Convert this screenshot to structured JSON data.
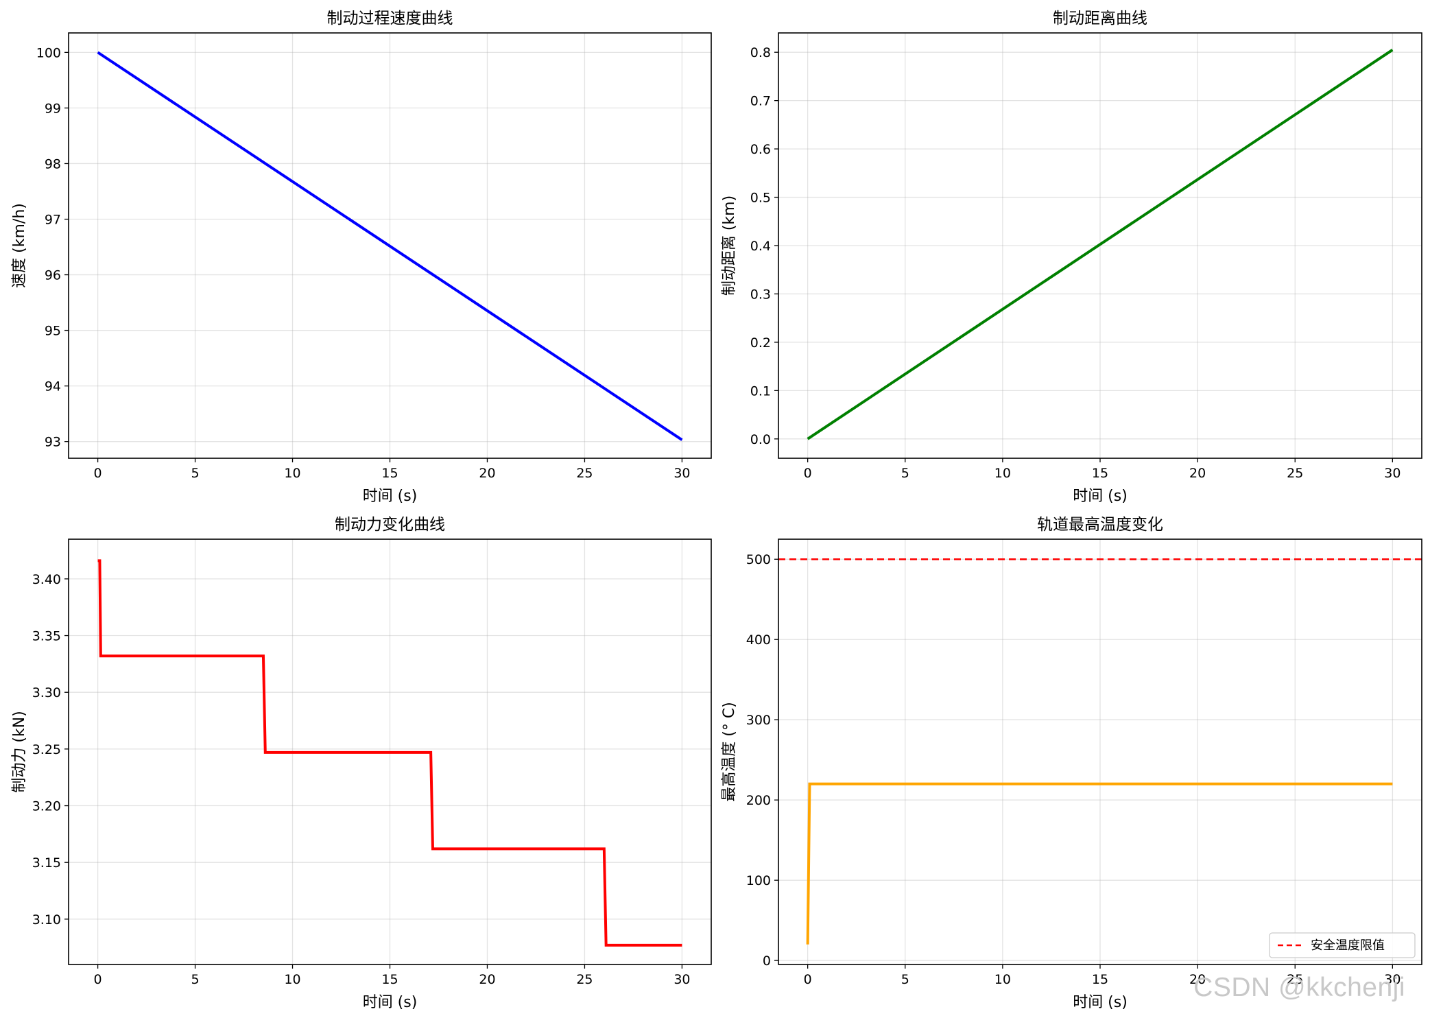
{
  "watermark": "CSDN @kkchenji",
  "chart_data": [
    {
      "type": "line",
      "title": "制动过程速度曲线",
      "xlabel": "时间 (s)",
      "ylabel": "速度 (km/h)",
      "xlim": [
        -1.5,
        31.5
      ],
      "ylim": [
        92.7,
        100.35
      ],
      "xticks": [
        0,
        5,
        10,
        15,
        20,
        25,
        30
      ],
      "yticks": [
        93,
        94,
        95,
        96,
        97,
        98,
        99,
        100
      ],
      "grid": true,
      "series": [
        {
          "color": "#0000ff",
          "x": [
            0,
            30
          ],
          "y": [
            100,
            93.03
          ]
        }
      ]
    },
    {
      "type": "line",
      "title": "制动距离曲线",
      "xlabel": "时间 (s)",
      "ylabel": "制动距离 (km)",
      "xlim": [
        -1.5,
        31.5
      ],
      "ylim": [
        -0.04,
        0.84
      ],
      "xticks": [
        0,
        5,
        10,
        15,
        20,
        25,
        30
      ],
      "yticks": [
        0.0,
        0.1,
        0.2,
        0.3,
        0.4,
        0.5,
        0.6,
        0.7,
        0.8
      ],
      "ytick_decimals": 1,
      "grid": true,
      "series": [
        {
          "color": "#008000",
          "x": [
            0,
            30
          ],
          "y": [
            0,
            0.805
          ]
        }
      ]
    },
    {
      "type": "line",
      "title": "制动力变化曲线",
      "xlabel": "时间 (s)",
      "ylabel": "制动力 (kN)",
      "xlim": [
        -1.5,
        31.5
      ],
      "ylim": [
        3.06,
        3.435
      ],
      "xticks": [
        0,
        5,
        10,
        15,
        20,
        25,
        30
      ],
      "yticks": [
        3.1,
        3.15,
        3.2,
        3.25,
        3.3,
        3.35,
        3.4
      ],
      "ytick_decimals": 2,
      "grid": true,
      "series": [
        {
          "color": "#ff0000",
          "x": [
            0,
            0.1,
            0.15,
            8.5,
            8.6,
            17.1,
            17.2,
            26.0,
            26.1,
            30
          ],
          "y": [
            3.416,
            3.416,
            3.332,
            3.332,
            3.247,
            3.247,
            3.162,
            3.162,
            3.077,
            3.077
          ]
        }
      ]
    },
    {
      "type": "line",
      "title": "轨道最高温度变化",
      "xlabel": "时间 (s)",
      "ylabel": "最高温度 (° C)",
      "xlim": [
        -1.5,
        31.5
      ],
      "ylim": [
        -5,
        525
      ],
      "xticks": [
        0,
        5,
        10,
        15,
        20,
        25,
        30
      ],
      "yticks": [
        0,
        100,
        200,
        300,
        400,
        500
      ],
      "grid": true,
      "legend_position": "lower-right",
      "series": [
        {
          "color": "#ffa500",
          "x": [
            0,
            0.1,
            30
          ],
          "y": [
            20,
            220,
            220
          ]
        }
      ],
      "hlines": [
        {
          "name": "安全温度限值",
          "y": 500,
          "color": "#ff0000",
          "style": "dashed"
        }
      ]
    }
  ]
}
